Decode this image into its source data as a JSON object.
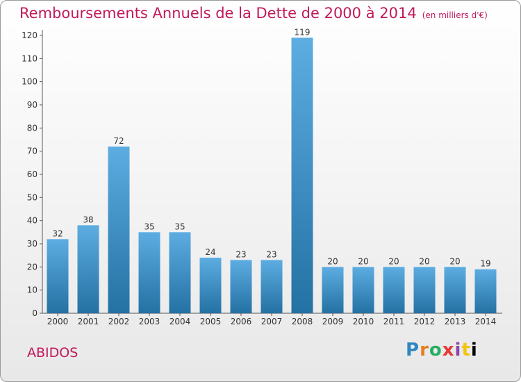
{
  "chart_data": {
    "type": "bar",
    "title": "Remboursements Annuels de la Dette de 2000 à 2014",
    "subtitle": "(en milliers d'€)",
    "categories": [
      "2000",
      "2001",
      "2002",
      "2003",
      "2004",
      "2005",
      "2006",
      "2007",
      "2008",
      "2009",
      "2010",
      "2011",
      "2012",
      "2013",
      "2014"
    ],
    "values": [
      32,
      38,
      72,
      35,
      35,
      24,
      23,
      23,
      119,
      20,
      20,
      20,
      20,
      20,
      19
    ],
    "ylim": [
      0,
      120
    ],
    "yticks": [
      0,
      10,
      20,
      30,
      40,
      50,
      60,
      70,
      80,
      90,
      100,
      110,
      120
    ],
    "grid": false,
    "bar_color_top": "#5dade2",
    "bar_color_bottom": "#2471a3"
  },
  "commune": "ABIDOS",
  "logo": [
    "P",
    "r",
    "o",
    "x",
    "i",
    "t",
    "i"
  ]
}
